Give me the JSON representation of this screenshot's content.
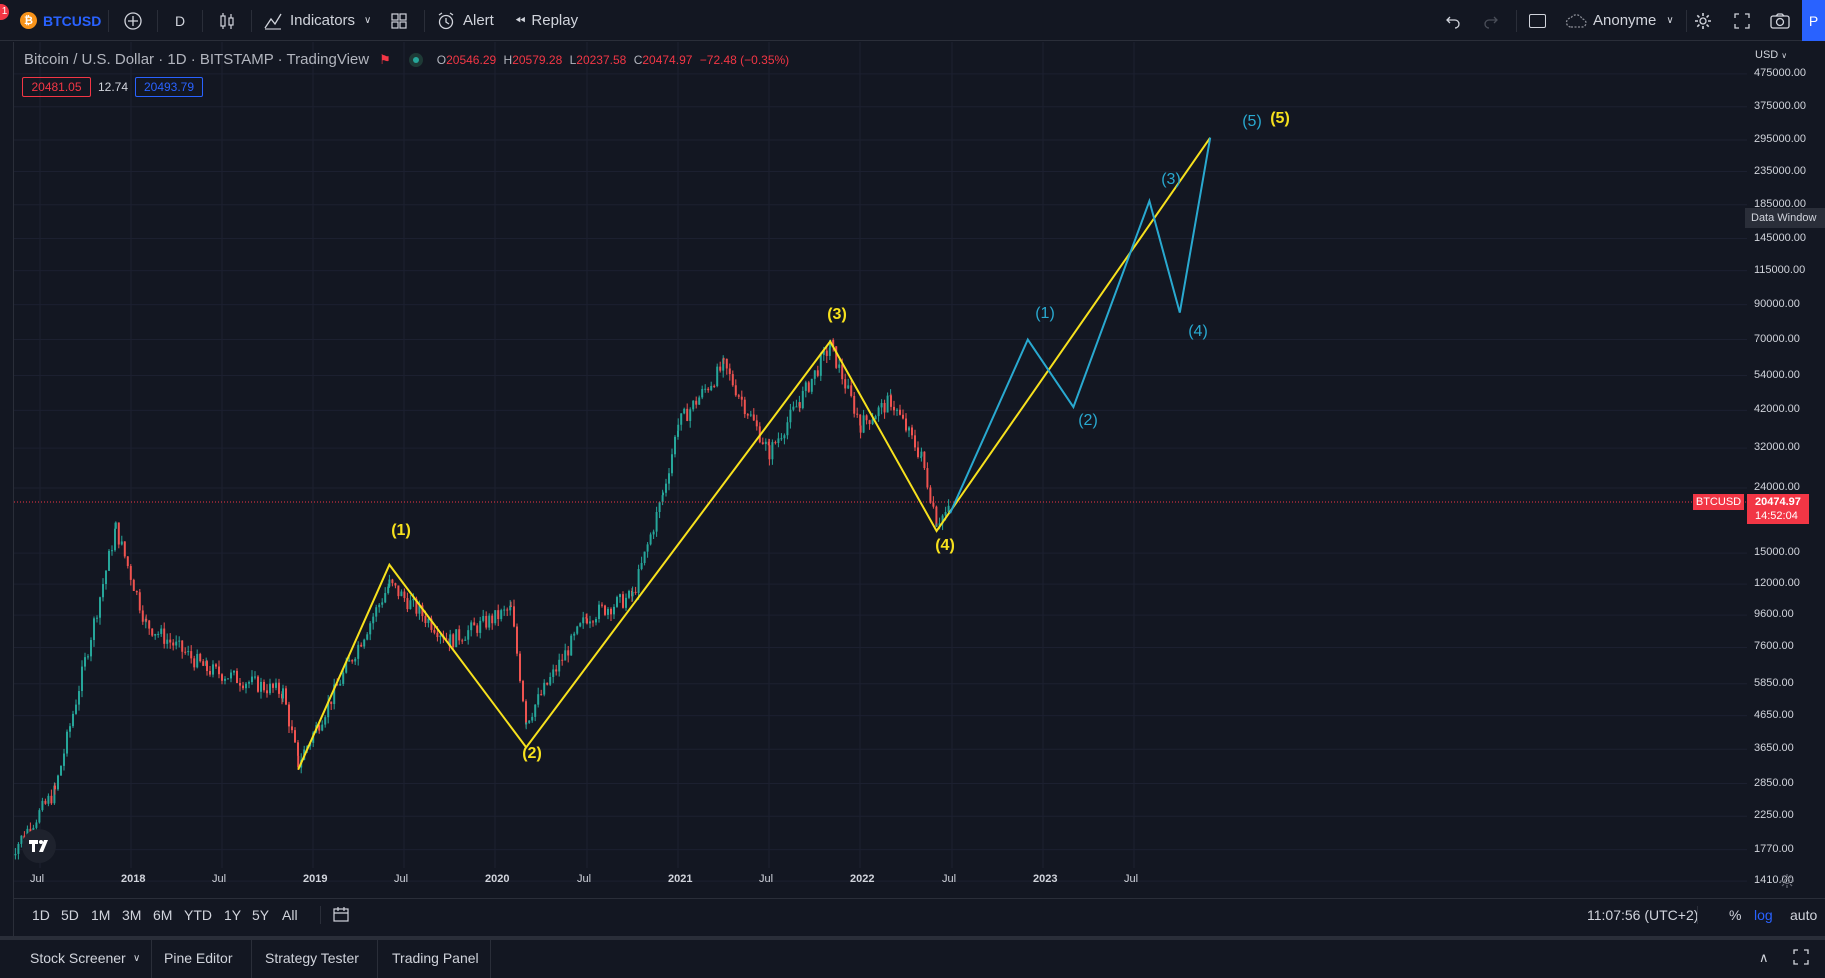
{
  "notification_badge": "1",
  "toolbar": {
    "symbol": "BTCUSD",
    "interval": "D",
    "indicators_label": "Indicators",
    "alert_label": "Alert",
    "replay_label": "Replay",
    "user_label": "Anonyme",
    "publish_label": "P"
  },
  "legend": {
    "title": "Bitcoin / U.S. Dollar · 1D · BITSTAMP · TradingView",
    "o_label": "O",
    "o_value": "20546.29",
    "h_label": "H",
    "h_value": "20579.28",
    "l_label": "L",
    "l_value": "20237.58",
    "c_label": "C",
    "c_value": "20474.97",
    "change": "−72.48 (−0.35%)",
    "bid": "20481.05",
    "spread": "12.74",
    "ask": "20493.79"
  },
  "price_axis": {
    "currency": "USD",
    "labels": [
      "475000.00",
      "375000.00",
      "295000.00",
      "235000.00",
      "185000.00",
      "145000.00",
      "115000.00",
      "90000.00",
      "70000.00",
      "54000.00",
      "42000.00",
      "32000.00",
      "24000.00",
      "15000.00",
      "12000.00",
      "9600.00",
      "7600.00",
      "5850.00",
      "4650.00",
      "3650.00",
      "2850.00",
      "2250.00",
      "1770.00",
      "1410.00"
    ],
    "data_window_tooltip": "Data Window",
    "current_symbol_tag": "BTCUSD",
    "current_price": "20474.97",
    "countdown": "14:52:04"
  },
  "time_axis": [
    {
      "label": "Jul",
      "bold": false
    },
    {
      "label": "2018",
      "bold": true
    },
    {
      "label": "Jul",
      "bold": false
    },
    {
      "label": "2019",
      "bold": true
    },
    {
      "label": "Jul",
      "bold": false
    },
    {
      "label": "2020",
      "bold": true
    },
    {
      "label": "Jul",
      "bold": false
    },
    {
      "label": "2021",
      "bold": true
    },
    {
      "label": "Jul",
      "bold": false
    },
    {
      "label": "2022",
      "bold": true
    },
    {
      "label": "Jul",
      "bold": false
    },
    {
      "label": "2023",
      "bold": true
    },
    {
      "label": "Jul",
      "bold": false
    }
  ],
  "waves_yellow": [
    "(1)",
    "(2)",
    "(3)",
    "(4)",
    "(5)"
  ],
  "waves_blue": [
    "(1)",
    "(2)",
    "(3)",
    "(4)",
    "(5)"
  ],
  "colors": {
    "background": "#131722",
    "wave_yellow": "#f7e11d",
    "wave_blue": "#29a9d0",
    "price_tag": "#f23645",
    "candle_up": "#26a69a",
    "candle_down": "#ef5350"
  },
  "range_bar": {
    "ranges": [
      "1D",
      "5D",
      "1M",
      "3M",
      "6M",
      "YTD",
      "1Y",
      "5Y",
      "All"
    ],
    "time": "11:07:56 (UTC+2)",
    "percent": "%",
    "log": "log",
    "auto": "auto"
  },
  "bottom_tabs": [
    "Stock Screener",
    "Pine Editor",
    "Strategy Tester",
    "Trading Panel"
  ],
  "chart_data": {
    "type": "candlestick",
    "title": "Bitcoin / U.S. Dollar · 1D · BITSTAMP · TradingView",
    "y_scale": "log",
    "ylim": [
      1410,
      475000
    ],
    "x": [
      "2017-05",
      "2017-08",
      "2017-12",
      "2018-02",
      "2018-06",
      "2018-11",
      "2018-12",
      "2019-06",
      "2019-10",
      "2020-02",
      "2020-03",
      "2020-07",
      "2020-10",
      "2020-12",
      "2021-01",
      "2021-04",
      "2021-07",
      "2021-09",
      "2021-11",
      "2022-01",
      "2022-03",
      "2022-05",
      "2022-06",
      "2022-06-28"
    ],
    "close": [
      1700,
      2700,
      18000,
      9000,
      6500,
      5500,
      3300,
      12000,
      8000,
      10000,
      4500,
      9500,
      11000,
      23000,
      38000,
      58000,
      31000,
      45000,
      67000,
      38000,
      45000,
      30000,
      19000,
      20474.97
    ],
    "wave_yellow": [
      {
        "label": "(1)",
        "date": "2019-06",
        "price": 13800
      },
      {
        "label": "(2)",
        "date": "2020-03",
        "price": 3700
      },
      {
        "label": "(3)",
        "date": "2021-11",
        "price": 69000
      },
      {
        "label": "(4)",
        "date": "2022-06",
        "price": 17600
      },
      {
        "label": "(5)",
        "date": "2023-12",
        "price": 300000
      }
    ],
    "wave_blue": [
      {
        "label": "(1)",
        "date": "2022-12",
        "price": 70000
      },
      {
        "label": "(2)",
        "date": "2023-03",
        "price": 43000
      },
      {
        "label": "(3)",
        "date": "2023-08",
        "price": 190000
      },
      {
        "label": "(4)",
        "date": "2023-10",
        "price": 85000
      },
      {
        "label": "(5)",
        "date": "2023-12",
        "price": 300000
      }
    ]
  }
}
